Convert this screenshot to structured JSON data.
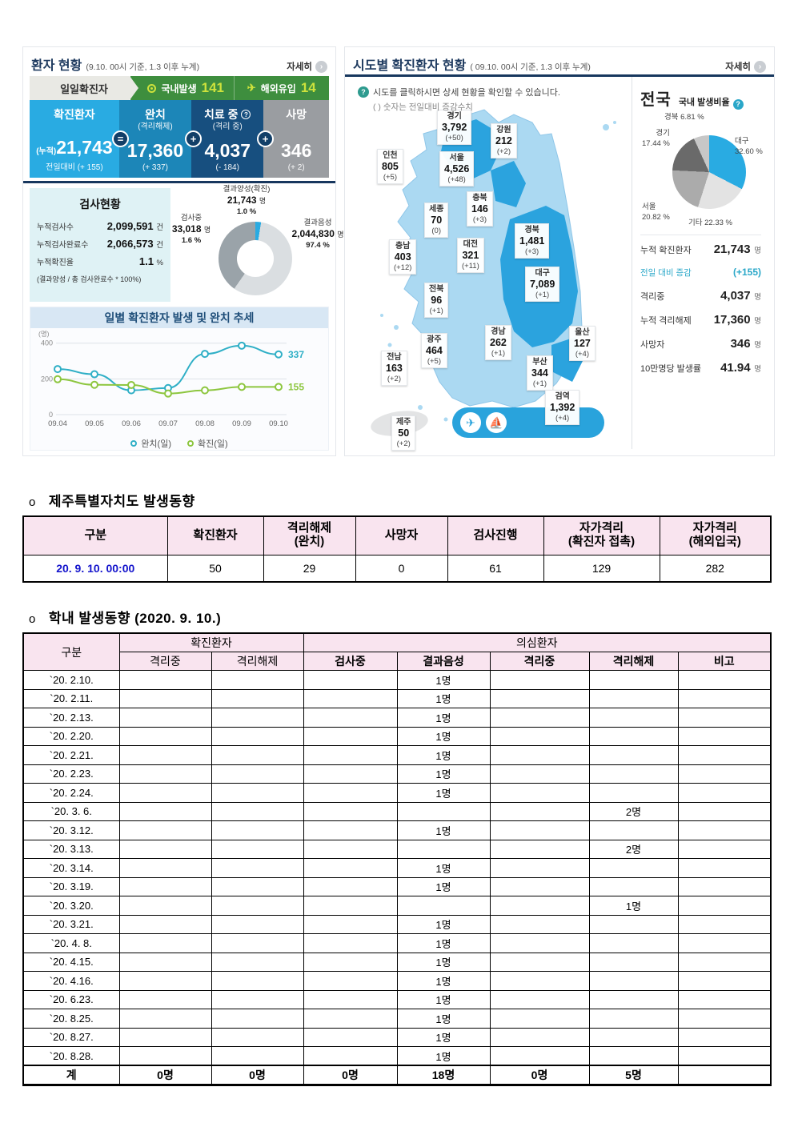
{
  "patient_panel": {
    "title": "환자 현황",
    "subtitle": "(9.10. 00시 기준, 1.3 이후 누계)",
    "more_label": "자세히",
    "daily_tab_label": "일일확진자",
    "domestic": {
      "label": "국내발생",
      "value": "141"
    },
    "imported": {
      "label": "해외유입",
      "value": "14"
    },
    "badges": [
      "=",
      "+",
      "+"
    ],
    "cards": [
      {
        "title": "확진환자",
        "subtitle": "",
        "prefix": "(누적)",
        "value": "21,743",
        "delta": "전일대비 (+ 155)",
        "color": "#29ABE2",
        "has_help": false
      },
      {
        "title": "완치",
        "subtitle": "(격리해제)",
        "prefix": "",
        "value": "17,360",
        "delta": "(+ 337)",
        "color": "#1C86B8",
        "has_help": false
      },
      {
        "title": "치료 중",
        "subtitle": "(격리 중)",
        "prefix": "",
        "value": "4,037",
        "delta": "(- 184)",
        "color": "#174F7F",
        "has_help": true
      },
      {
        "title": "사망",
        "subtitle": "",
        "prefix": "",
        "value": "346",
        "delta": "(+ 2)",
        "color": "#9A9DA1",
        "has_help": false
      }
    ],
    "test_status": {
      "title": "검사현황",
      "rows": [
        {
          "label": "누적검사수",
          "value": "2,099,591",
          "unit": "건"
        },
        {
          "label": "누적검사완료수",
          "value": "2,066,573",
          "unit": "건"
        },
        {
          "label": "누적확진율",
          "value": "1.1",
          "unit": "%"
        }
      ],
      "note": "(결과양성 / 총 검사완료수 * 100%)"
    }
  },
  "chart_data": [
    {
      "type": "line",
      "title": "일별 확진환자 발생 및 완치 추세",
      "ylabel": "(명)",
      "yticks": [
        0,
        200,
        400
      ],
      "ylim": [
        0,
        430
      ],
      "grid": true,
      "legend_position": "bottom",
      "x": [
        "09.04",
        "09.05",
        "09.06",
        "09.07",
        "09.08",
        "09.09",
        "09.10"
      ],
      "series": [
        {
          "name": "완치(일)",
          "color": "#2FAFC6",
          "values": [
            255,
            226,
            136,
            149,
            340,
            386,
            337
          ],
          "end_label": "337"
        },
        {
          "name": "확진(일)",
          "color": "#8DC63F",
          "values": [
            198,
            167,
            166,
            118,
            136,
            155,
            155
          ],
          "end_label": "155"
        }
      ]
    },
    {
      "type": "donut",
      "title": "검사현황 결과 비율",
      "slices": [
        {
          "label": "결과양성(확진)",
          "display": "21,743",
          "unit": "명",
          "pct": "1.0 %",
          "color": "#29ABE2"
        },
        {
          "label": "검사중",
          "display": "33,018",
          "unit": "명",
          "pct": "1.6 %",
          "color": "#9AA3A9"
        },
        {
          "label": "결과음성",
          "display": "2,044,830",
          "unit": "명",
          "pct": "97.4 %",
          "color": "#DADEE1"
        }
      ]
    },
    {
      "type": "pie",
      "title": "국내 발생비율",
      "slices": [
        {
          "label": "대구",
          "pct": "32.60",
          "color": "#29ABE2"
        },
        {
          "label": "기타",
          "pct": "22.33",
          "color": "#E3E3E3"
        },
        {
          "label": "서울",
          "pct": "20.82",
          "color": "#ABABAB"
        },
        {
          "label": "경기",
          "pct": "17.44",
          "color": "#6A6A6A"
        },
        {
          "label": "경북",
          "pct": "6.81",
          "color": "#C7C7C7"
        }
      ]
    }
  ],
  "region_panel": {
    "title": "시도별 확진환자 현황",
    "subtitle": "( 09.10. 00시 기준, 1.3 이후 누계)",
    "more_label": "자세히",
    "note1": "시도를 클릭하시면 상세 현황을 확인할 수 있습니다.",
    "note2": "( ) 숫자는 전일대비 증감수치",
    "regions": [
      {
        "name": "경기",
        "value": "3,792",
        "delta": "(+50)"
      },
      {
        "name": "강원",
        "value": "212",
        "delta": "(+2)"
      },
      {
        "name": "인천",
        "value": "805",
        "delta": "(+5)"
      },
      {
        "name": "서울",
        "value": "4,526",
        "delta": "(+48)"
      },
      {
        "name": "충북",
        "value": "146",
        "delta": "(+3)"
      },
      {
        "name": "세종",
        "value": "70",
        "delta": "(0)"
      },
      {
        "name": "충남",
        "value": "403",
        "delta": "(+12)"
      },
      {
        "name": "대전",
        "value": "321",
        "delta": "(+11)"
      },
      {
        "name": "경북",
        "value": "1,481",
        "delta": "(+3)"
      },
      {
        "name": "대구",
        "value": "7,089",
        "delta": "(+1)"
      },
      {
        "name": "전북",
        "value": "96",
        "delta": "(+1)"
      },
      {
        "name": "경남",
        "value": "262",
        "delta": "(+1)"
      },
      {
        "name": "울산",
        "value": "127",
        "delta": "(+4)"
      },
      {
        "name": "광주",
        "value": "464",
        "delta": "(+5)"
      },
      {
        "name": "전남",
        "value": "163",
        "delta": "(+2)"
      },
      {
        "name": "부산",
        "value": "344",
        "delta": "(+1)"
      },
      {
        "name": "제주",
        "value": "50",
        "delta": "(+2)"
      }
    ],
    "quarantine": {
      "name": "검역",
      "value": "1,392",
      "delta": "(+4)"
    }
  },
  "national_panel": {
    "title": "전국",
    "ratio_label": "국내 발생비율",
    "stats": [
      {
        "label": "누적 확진환자",
        "value": "21,743",
        "unit": "명",
        "accent": false
      },
      {
        "label": "전일 대비 증감",
        "value": "(+155)",
        "unit": "",
        "accent": true
      },
      {
        "label": "격리중",
        "value": "4,037",
        "unit": "명",
        "accent": false
      },
      {
        "label": "누적 격리해제",
        "value": "17,360",
        "unit": "명",
        "accent": false
      },
      {
        "label": "사망자",
        "value": "346",
        "unit": "명",
        "accent": false
      },
      {
        "label": "10만명당 발생률",
        "value": "41.94",
        "unit": "명",
        "accent": false
      }
    ]
  },
  "jeju_section": {
    "heading_bullet": "o",
    "heading": "제주특별자치도 발생동향",
    "headers": [
      "구분",
      "확진환자",
      "격리해제\n(완치)",
      "사망자",
      "검사진행",
      "자가격리\n(확진자 접촉)",
      "자가격리\n(해외입국)"
    ],
    "row": {
      "label": "20. 9. 10. 00:00",
      "values": [
        "50",
        "29",
        "0",
        "61",
        "129",
        "282"
      ]
    }
  },
  "school_section": {
    "heading_bullet": "o",
    "heading": "학내 발생동향 (2020. 9. 10.)",
    "col_label": "구분",
    "group1": {
      "label": "확진환자",
      "subheaders": [
        "격리중",
        "격리해제"
      ]
    },
    "group2": {
      "label": "의심환자",
      "subheaders": [
        "검사중",
        "결과음성",
        "격리중",
        "격리해제",
        "비고"
      ]
    },
    "rows": [
      {
        "date": "`20. 2.10.",
        "cells": [
          "",
          "",
          "",
          "1명",
          "",
          "",
          ""
        ]
      },
      {
        "date": "`20. 2.11.",
        "cells": [
          "",
          "",
          "",
          "1명",
          "",
          "",
          ""
        ]
      },
      {
        "date": "`20. 2.13.",
        "cells": [
          "",
          "",
          "",
          "1명",
          "",
          "",
          ""
        ]
      },
      {
        "date": "`20. 2.20.",
        "cells": [
          "",
          "",
          "",
          "1명",
          "",
          "",
          ""
        ]
      },
      {
        "date": "`20. 2.21.",
        "cells": [
          "",
          "",
          "",
          "1명",
          "",
          "",
          ""
        ]
      },
      {
        "date": "`20. 2.23.",
        "cells": [
          "",
          "",
          "",
          "1명",
          "",
          "",
          ""
        ]
      },
      {
        "date": "`20. 2.24.",
        "cells": [
          "",
          "",
          "",
          "1명",
          "",
          "",
          ""
        ]
      },
      {
        "date": "`20. 3. 6.",
        "cells": [
          "",
          "",
          "",
          "",
          "",
          "2명",
          ""
        ]
      },
      {
        "date": "`20. 3.12.",
        "cells": [
          "",
          "",
          "",
          "1명",
          "",
          "",
          ""
        ]
      },
      {
        "date": "`20. 3.13.",
        "cells": [
          "",
          "",
          "",
          "",
          "",
          "2명",
          ""
        ]
      },
      {
        "date": "`20. 3.14.",
        "cells": [
          "",
          "",
          "",
          "1명",
          "",
          "",
          ""
        ]
      },
      {
        "date": "`20. 3.19.",
        "cells": [
          "",
          "",
          "",
          "1명",
          "",
          "",
          ""
        ]
      },
      {
        "date": "`20. 3.20.",
        "cells": [
          "",
          "",
          "",
          "",
          "",
          "1명",
          ""
        ]
      },
      {
        "date": "`20. 3.21.",
        "cells": [
          "",
          "",
          "",
          "1명",
          "",
          "",
          ""
        ]
      },
      {
        "date": "`20. 4. 8.",
        "cells": [
          "",
          "",
          "",
          "1명",
          "",
          "",
          ""
        ]
      },
      {
        "date": "`20. 4.15.",
        "cells": [
          "",
          "",
          "",
          "1명",
          "",
          "",
          ""
        ]
      },
      {
        "date": "`20. 4.16.",
        "cells": [
          "",
          "",
          "",
          "1명",
          "",
          "",
          ""
        ]
      },
      {
        "date": "`20. 6.23.",
        "cells": [
          "",
          "",
          "",
          "1명",
          "",
          "",
          ""
        ]
      },
      {
        "date": "`20. 8.25.",
        "cells": [
          "",
          "",
          "",
          "1명",
          "",
          "",
          ""
        ]
      },
      {
        "date": "`20. 8.27.",
        "cells": [
          "",
          "",
          "",
          "1명",
          "",
          "",
          ""
        ]
      },
      {
        "date": "`20. 8.28.",
        "cells": [
          "",
          "",
          "",
          "1명",
          "",
          "",
          ""
        ]
      }
    ],
    "total": {
      "date": "계",
      "cells": [
        "0명",
        "0명",
        "0명",
        "18명",
        "0명",
        "5명",
        ""
      ]
    }
  }
}
